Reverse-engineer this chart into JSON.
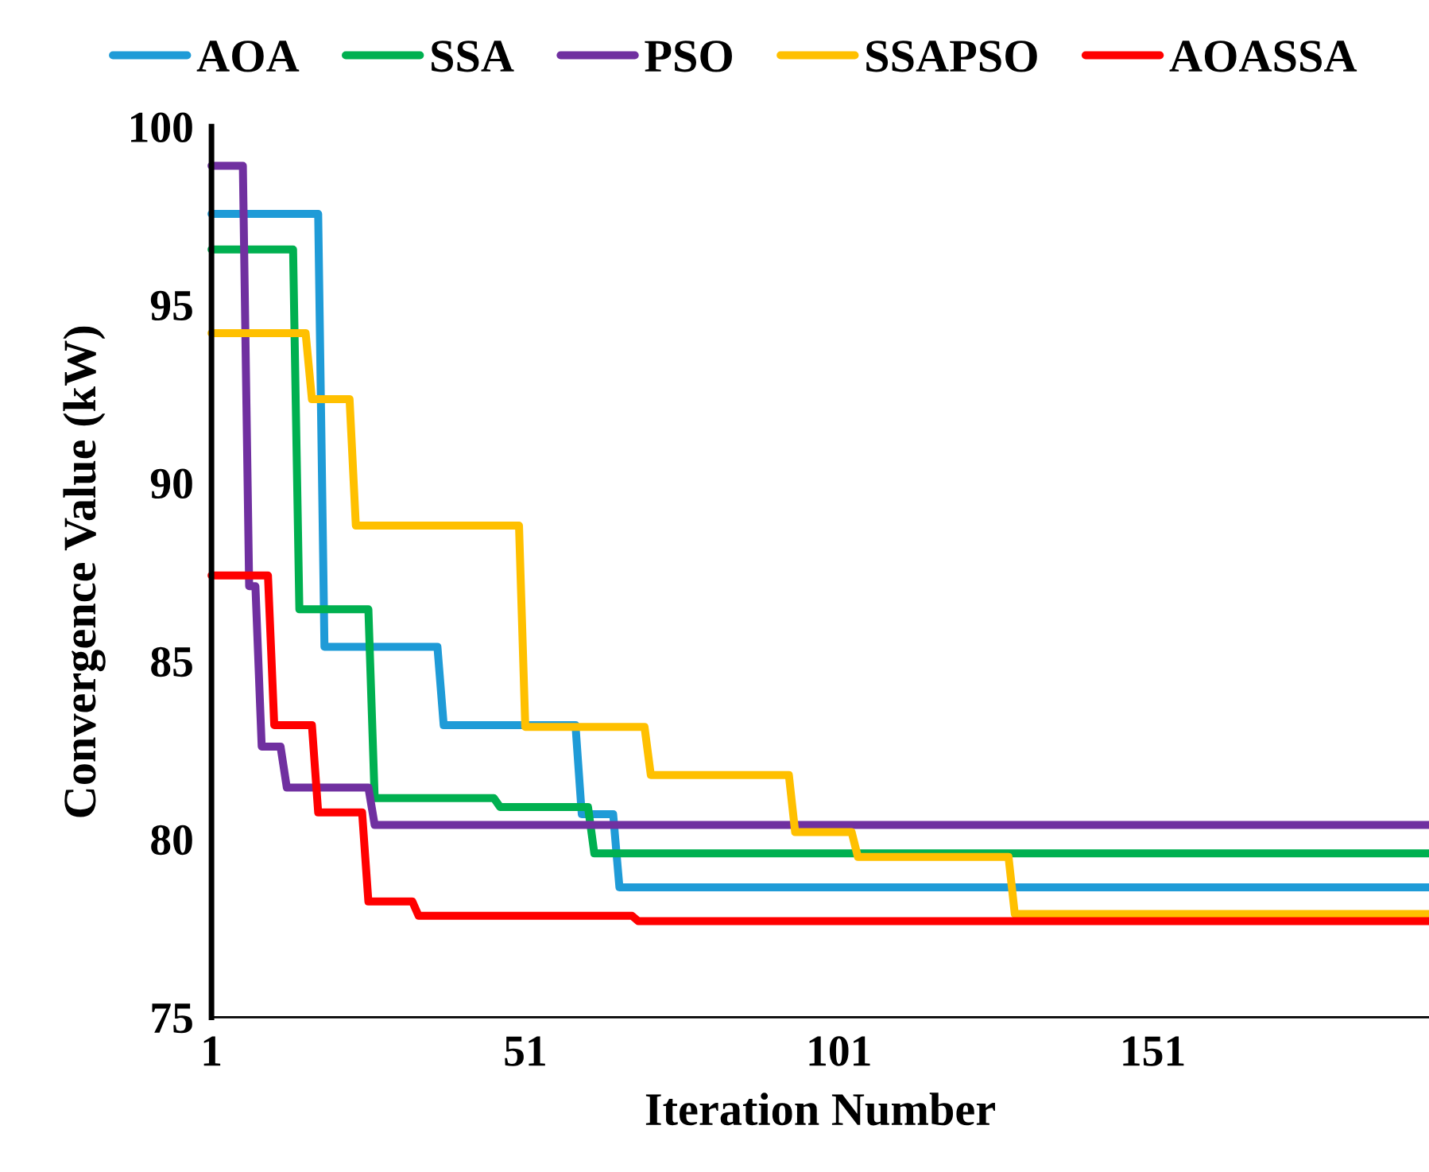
{
  "chart_data": {
    "type": "line",
    "xlabel": "Iteration Number",
    "ylabel": "Convergence Value (kW)",
    "xlim": [
      1,
      195
    ],
    "xticks": [
      1,
      51,
      101,
      151
    ],
    "ylim": [
      75,
      100
    ],
    "yticks": [
      75,
      80,
      85,
      90,
      95,
      100
    ],
    "grid": false,
    "legend": "top",
    "marker": "none",
    "line_style": "solid",
    "series": [
      {
        "name": "AOA",
        "color": "#1f9bd7",
        "x": [
          1,
          18,
          19,
          37,
          38,
          59,
          60,
          65,
          66,
          195
        ],
        "values": [
          97.55,
          97.55,
          85.4,
          85.4,
          83.2,
          83.2,
          80.7,
          80.7,
          78.65,
          78.65
        ]
      },
      {
        "name": "SSA",
        "color": "#00b050",
        "x": [
          1,
          14,
          15,
          26,
          27,
          46,
          47,
          61,
          62,
          195
        ],
        "values": [
          96.55,
          96.55,
          86.45,
          86.45,
          81.15,
          81.15,
          80.9,
          80.9,
          79.6,
          79.6
        ]
      },
      {
        "name": "PSO",
        "color": "#7030a0",
        "x": [
          1,
          6,
          7,
          8,
          9,
          12,
          13,
          26,
          27,
          195
        ],
        "values": [
          98.9,
          98.9,
          87.1,
          87.1,
          82.6,
          82.6,
          81.45,
          81.45,
          80.4,
          80.4
        ]
      },
      {
        "name": "SSAPSO",
        "color": "#ffc000",
        "x": [
          1,
          16,
          17,
          23,
          24,
          50,
          51,
          70,
          71,
          93,
          94,
          103,
          104,
          128,
          129,
          195
        ],
        "values": [
          94.2,
          94.2,
          92.35,
          92.35,
          88.8,
          88.8,
          83.15,
          83.15,
          81.8,
          81.8,
          80.2,
          80.2,
          79.5,
          79.5,
          77.9,
          77.9
        ]
      },
      {
        "name": "AOASSA",
        "color": "#ff0000",
        "x": [
          1,
          10,
          11,
          17,
          18,
          25,
          26,
          33,
          34,
          68,
          69,
          195
        ],
        "values": [
          87.4,
          87.4,
          83.2,
          83.2,
          80.75,
          80.75,
          78.25,
          78.25,
          77.85,
          77.85,
          77.7,
          77.7
        ]
      }
    ]
  }
}
